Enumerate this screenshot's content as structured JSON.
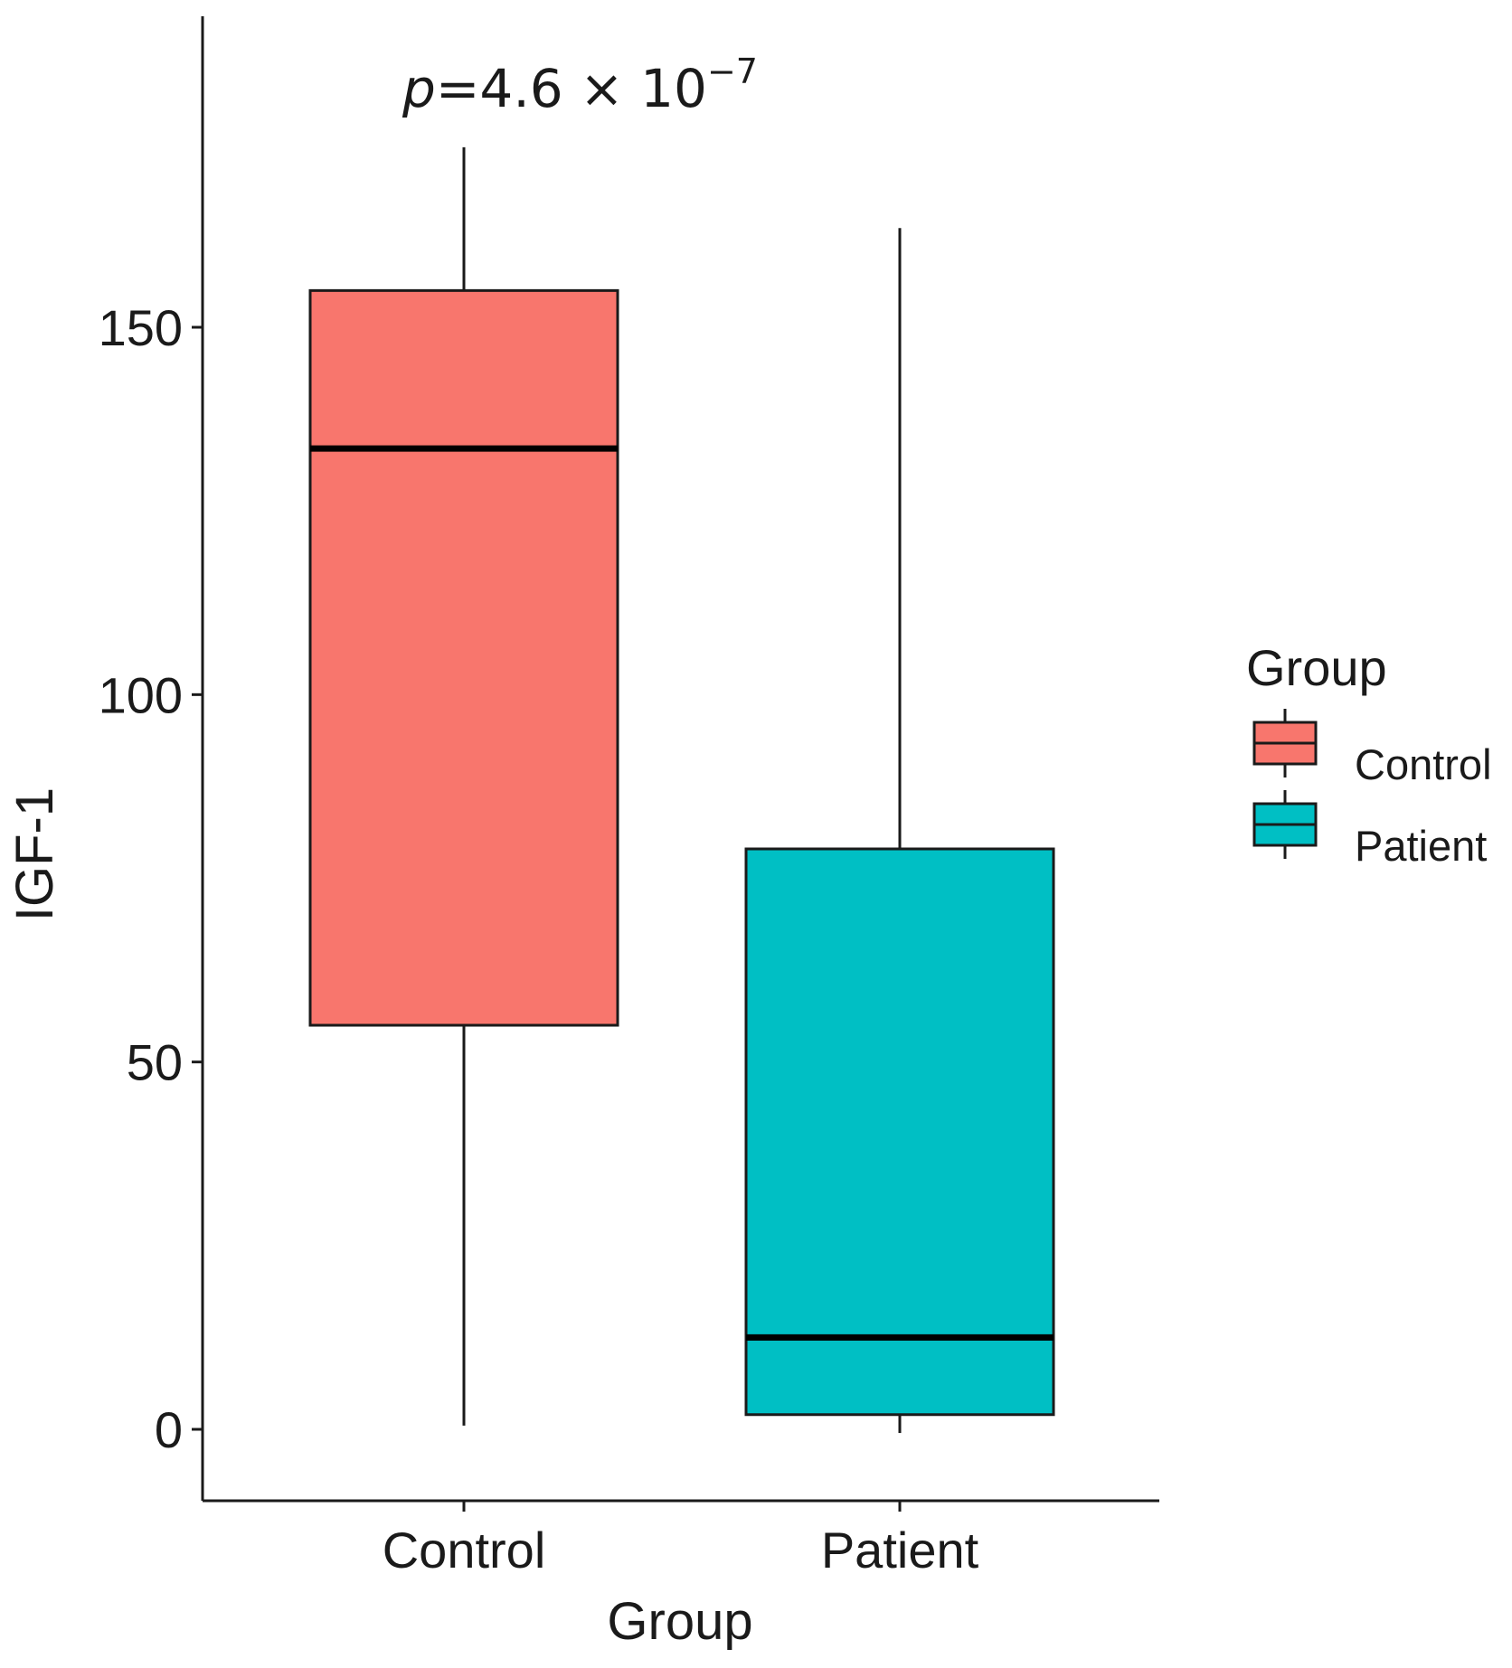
{
  "chart_data": {
    "type": "boxplot",
    "title": "",
    "xlabel": "Group",
    "ylabel": "IGF-1",
    "ylim": [
      -9.5,
      192
    ],
    "yticks": [
      0,
      50,
      100,
      150
    ],
    "ytick_labels": [
      "0",
      "50",
      "100",
      "150"
    ],
    "categories": [
      "Control",
      "Patient"
    ],
    "boxes": [
      {
        "group": "Control",
        "whisker_low": 0.5,
        "q1": 55,
        "median": 133.5,
        "q3": 155,
        "whisker_high": 174.5,
        "color": "#F8766D"
      },
      {
        "group": "Patient",
        "whisker_low": -0.5,
        "q1": 2,
        "median": 12.5,
        "q3": 79,
        "whisker_high": 163.5,
        "color": "#00BFC4"
      }
    ],
    "annotation": {
      "italic_part": "p",
      "text": "=4.6 × 10",
      "superscript": "−7",
      "group": "Control",
      "y": 180
    },
    "legend": {
      "title": "Group",
      "position": "right",
      "entries": [
        {
          "label": "Control",
          "color": "#F8766D"
        },
        {
          "label": "Patient",
          "color": "#00BFC4"
        }
      ]
    },
    "grid": false
  }
}
